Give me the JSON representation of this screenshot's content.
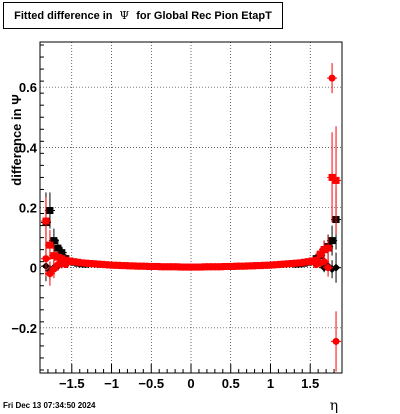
{
  "title": {
    "prefix": "Fitted difference in",
    "symbol": "Ψ",
    "suffix": "for Global Rec Pion EtapT"
  },
  "datestamp": "Fri Dec 13 07:34:50 2024",
  "chart_data": {
    "type": "scatter",
    "title": "Fitted difference in Ψ for Global Rec Pion EtapT",
    "xlabel": "η",
    "ylabel": "difference in Ψ",
    "xlim": [
      -1.9,
      1.9
    ],
    "ylim": [
      -0.35,
      0.75
    ],
    "xticks": [
      -1.5,
      -1,
      -0.5,
      0,
      0.5,
      1,
      1.5
    ],
    "xtick_labels": [
      "−1.5",
      "−1",
      "−0.5",
      "0",
      "0.5",
      "1",
      "1.5"
    ],
    "yticks": [
      -0.2,
      0,
      0.2,
      0.4,
      0.6
    ],
    "ytick_labels": [
      "−0.2",
      "0",
      "0.2",
      "0.4",
      "0.6"
    ],
    "grid": true,
    "colors": {
      "black_series": "#000000",
      "red_series": "#ff0000"
    },
    "series": [
      {
        "marker": "square",
        "color": "#000000",
        "points": [
          {
            "x": -1.825,
            "y": 0.15,
            "err": 0.1
          },
          {
            "x": -1.775,
            "y": 0.19,
            "err": 0.06
          },
          {
            "x": -1.725,
            "y": 0.09,
            "err": 0.04
          },
          {
            "x": -1.675,
            "y": 0.065,
            "err": 0.03
          },
          {
            "x": -1.625,
            "y": 0.05,
            "err": 0.02
          },
          {
            "x": -1.575,
            "y": 0.03,
            "err": 0.015
          },
          {
            "x": -1.525,
            "y": 0.022,
            "err": 0.01
          },
          {
            "x": -1.475,
            "y": 0.018,
            "err": 0.008
          },
          {
            "x": -1.425,
            "y": 0.015,
            "err": 0.006
          },
          {
            "x": -1.375,
            "y": 0.013,
            "err": 0.005
          },
          {
            "x": -1.325,
            "y": 0.012,
            "err": 0.005
          },
          {
            "x": 1.325,
            "y": 0.012,
            "err": 0.005
          },
          {
            "x": 1.375,
            "y": 0.013,
            "err": 0.005
          },
          {
            "x": 1.425,
            "y": 0.015,
            "err": 0.006
          },
          {
            "x": 1.475,
            "y": 0.018,
            "err": 0.008
          },
          {
            "x": 1.525,
            "y": 0.022,
            "err": 0.01
          },
          {
            "x": 1.575,
            "y": 0.03,
            "err": 0.015
          },
          {
            "x": 1.625,
            "y": 0.04,
            "err": 0.02
          },
          {
            "x": 1.675,
            "y": 0.06,
            "err": 0.03
          },
          {
            "x": 1.725,
            "y": 0.07,
            "err": 0.04
          },
          {
            "x": 1.775,
            "y": 0.09,
            "err": 0.05
          },
          {
            "x": 1.825,
            "y": 0.16,
            "err": 0.1
          }
        ]
      },
      {
        "marker": "diamond",
        "color": "#000000",
        "points": [
          {
            "x": -1.825,
            "y": 0.005,
            "err": 0.05
          },
          {
            "x": -1.775,
            "y": -0.01,
            "err": 0.03
          },
          {
            "x": -1.725,
            "y": 0.0,
            "err": 0.02
          },
          {
            "x": -1.675,
            "y": 0.005,
            "err": 0.015
          },
          {
            "x": 1.675,
            "y": 0.0,
            "err": 0.015
          },
          {
            "x": 1.725,
            "y": 0.005,
            "err": 0.02
          },
          {
            "x": 1.775,
            "y": -0.005,
            "err": 0.03
          },
          {
            "x": 1.825,
            "y": 0.0,
            "err": 0.05
          }
        ]
      },
      {
        "marker": "square",
        "color": "#ff0000",
        "points": [
          {
            "x": -1.825,
            "y": 0.155,
            "err": 0.08
          },
          {
            "x": -1.775,
            "y": 0.075,
            "err": 0.05
          },
          {
            "x": -1.725,
            "y": 0.04,
            "err": 0.03
          },
          {
            "x": -1.675,
            "y": 0.035,
            "err": 0.02
          },
          {
            "x": -1.625,
            "y": 0.03,
            "err": 0.015
          },
          {
            "x": -1.575,
            "y": 0.025,
            "err": 0.01
          },
          {
            "x": -1.525,
            "y": 0.022,
            "err": 0.008
          },
          {
            "x": -1.475,
            "y": 0.02,
            "err": 0.006
          },
          {
            "x": -1.425,
            "y": 0.018,
            "err": 0.005
          },
          {
            "x": -1.375,
            "y": 0.016,
            "err": 0.005
          },
          {
            "x": -1.325,
            "y": 0.015,
            "err": 0.004
          },
          {
            "x": -1.275,
            "y": 0.014,
            "err": 0.004
          },
          {
            "x": -1.225,
            "y": 0.013,
            "err": 0.004
          },
          {
            "x": -1.175,
            "y": 0.012,
            "err": 0.004
          },
          {
            "x": -1.125,
            "y": 0.011,
            "err": 0.004
          },
          {
            "x": -1.075,
            "y": 0.01,
            "err": 0.003
          },
          {
            "x": -1.025,
            "y": 0.009,
            "err": 0.003
          },
          {
            "x": -0.975,
            "y": 0.008,
            "err": 0.003
          },
          {
            "x": -0.925,
            "y": 0.008,
            "err": 0.003
          },
          {
            "x": -0.875,
            "y": 0.007,
            "err": 0.003
          },
          {
            "x": -0.825,
            "y": 0.007,
            "err": 0.003
          },
          {
            "x": -0.775,
            "y": 0.006,
            "err": 0.003
          },
          {
            "x": -0.725,
            "y": 0.006,
            "err": 0.003
          },
          {
            "x": -0.675,
            "y": 0.005,
            "err": 0.003
          },
          {
            "x": -0.625,
            "y": 0.005,
            "err": 0.003
          },
          {
            "x": -0.575,
            "y": 0.005,
            "err": 0.003
          },
          {
            "x": -0.525,
            "y": 0.004,
            "err": 0.003
          },
          {
            "x": -0.475,
            "y": 0.004,
            "err": 0.003
          },
          {
            "x": -0.425,
            "y": 0.004,
            "err": 0.003
          },
          {
            "x": -0.375,
            "y": 0.003,
            "err": 0.003
          },
          {
            "x": -0.325,
            "y": 0.003,
            "err": 0.003
          },
          {
            "x": -0.275,
            "y": 0.003,
            "err": 0.003
          },
          {
            "x": -0.225,
            "y": 0.003,
            "err": 0.003
          },
          {
            "x": -0.175,
            "y": 0.003,
            "err": 0.003
          },
          {
            "x": -0.125,
            "y": 0.002,
            "err": 0.003
          },
          {
            "x": -0.075,
            "y": 0.002,
            "err": 0.003
          },
          {
            "x": -0.025,
            "y": 0.002,
            "err": 0.003
          },
          {
            "x": 0.025,
            "y": 0.002,
            "err": 0.003
          },
          {
            "x": 0.075,
            "y": 0.002,
            "err": 0.003
          },
          {
            "x": 0.125,
            "y": 0.002,
            "err": 0.003
          },
          {
            "x": 0.175,
            "y": 0.003,
            "err": 0.003
          },
          {
            "x": 0.225,
            "y": 0.003,
            "err": 0.003
          },
          {
            "x": 0.275,
            "y": 0.003,
            "err": 0.003
          },
          {
            "x": 0.325,
            "y": 0.003,
            "err": 0.003
          },
          {
            "x": 0.375,
            "y": 0.003,
            "err": 0.003
          },
          {
            "x": 0.425,
            "y": 0.004,
            "err": 0.003
          },
          {
            "x": 0.475,
            "y": 0.004,
            "err": 0.003
          },
          {
            "x": 0.525,
            "y": 0.004,
            "err": 0.003
          },
          {
            "x": 0.575,
            "y": 0.005,
            "err": 0.003
          },
          {
            "x": 0.625,
            "y": 0.005,
            "err": 0.003
          },
          {
            "x": 0.675,
            "y": 0.005,
            "err": 0.003
          },
          {
            "x": 0.725,
            "y": 0.006,
            "err": 0.003
          },
          {
            "x": 0.775,
            "y": 0.006,
            "err": 0.003
          },
          {
            "x": 0.825,
            "y": 0.007,
            "err": 0.003
          },
          {
            "x": 0.875,
            "y": 0.007,
            "err": 0.003
          },
          {
            "x": 0.925,
            "y": 0.008,
            "err": 0.003
          },
          {
            "x": 0.975,
            "y": 0.008,
            "err": 0.003
          },
          {
            "x": 1.025,
            "y": 0.009,
            "err": 0.003
          },
          {
            "x": 1.075,
            "y": 0.01,
            "err": 0.003
          },
          {
            "x": 1.125,
            "y": 0.011,
            "err": 0.004
          },
          {
            "x": 1.175,
            "y": 0.012,
            "err": 0.004
          },
          {
            "x": 1.225,
            "y": 0.013,
            "err": 0.004
          },
          {
            "x": 1.275,
            "y": 0.014,
            "err": 0.004
          },
          {
            "x": 1.325,
            "y": 0.015,
            "err": 0.004
          },
          {
            "x": 1.375,
            "y": 0.016,
            "err": 0.005
          },
          {
            "x": 1.425,
            "y": 0.018,
            "err": 0.005
          },
          {
            "x": 1.475,
            "y": 0.02,
            "err": 0.006
          },
          {
            "x": 1.525,
            "y": 0.022,
            "err": 0.008
          },
          {
            "x": 1.575,
            "y": 0.025,
            "err": 0.01
          },
          {
            "x": 1.625,
            "y": 0.045,
            "err": 0.02
          },
          {
            "x": 1.675,
            "y": 0.06,
            "err": 0.03
          },
          {
            "x": 1.725,
            "y": 0.065,
            "err": 0.04
          },
          {
            "x": 1.775,
            "y": 0.3,
            "err": 0.15
          },
          {
            "x": 1.825,
            "y": 0.29,
            "err": 0.18
          }
        ]
      },
      {
        "marker": "circle",
        "color": "#ff0000",
        "points": [
          {
            "x": -1.825,
            "y": 0.03,
            "err": 0.06
          },
          {
            "x": -1.775,
            "y": -0.02,
            "err": 0.04
          },
          {
            "x": -1.725,
            "y": -0.005,
            "err": 0.03
          },
          {
            "x": -1.675,
            "y": 0.01,
            "err": 0.02
          },
          {
            "x": -1.625,
            "y": 0.012,
            "err": 0.015
          },
          {
            "x": -1.575,
            "y": 0.01,
            "err": 0.01
          },
          {
            "x": 1.575,
            "y": 0.01,
            "err": 0.01
          },
          {
            "x": 1.625,
            "y": 0.015,
            "err": 0.015
          },
          {
            "x": 1.675,
            "y": 0.02,
            "err": 0.02
          },
          {
            "x": 1.725,
            "y": 0.0,
            "err": 0.03
          },
          {
            "x": 1.775,
            "y": 0.63,
            "err": 0.05
          },
          {
            "x": 1.825,
            "y": -0.245,
            "err": 0.1
          }
        ]
      }
    ]
  }
}
